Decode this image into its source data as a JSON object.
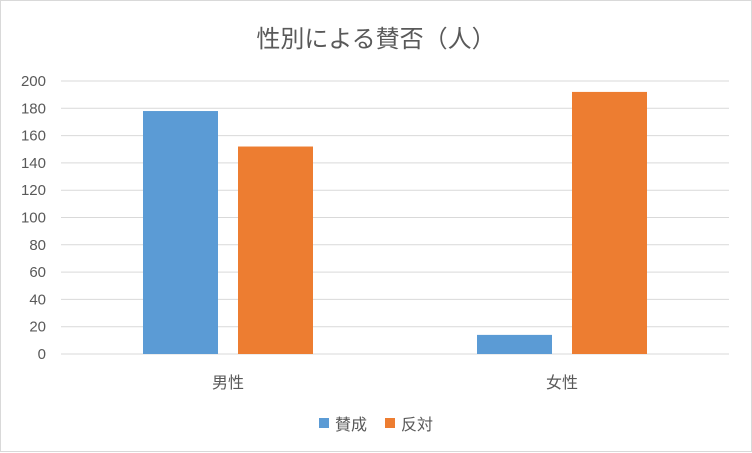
{
  "chart_data": {
    "type": "bar",
    "title": "性別による賛否（人）",
    "categories": [
      "男性",
      "女性"
    ],
    "series": [
      {
        "name": "賛成",
        "color": "#5b9bd5",
        "values": [
          178,
          14
        ]
      },
      {
        "name": "反対",
        "color": "#ed7d31",
        "values": [
          152,
          192
        ]
      }
    ],
    "ylim": [
      0,
      200
    ],
    "yticks": [
      0,
      20,
      40,
      60,
      80,
      100,
      120,
      140,
      160,
      180,
      200
    ],
    "grid": true,
    "legend_position": "bottom"
  }
}
